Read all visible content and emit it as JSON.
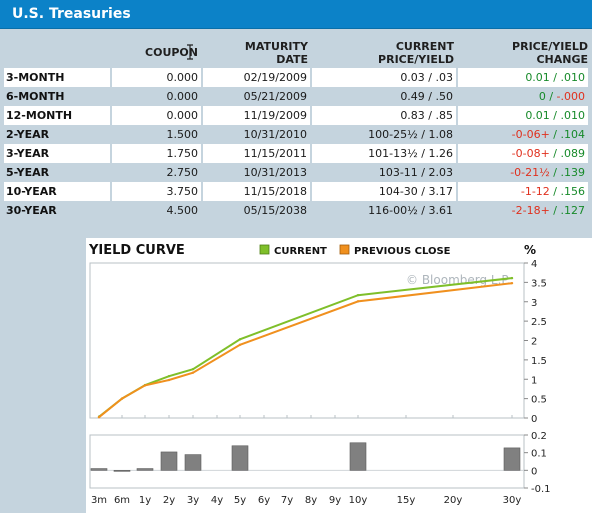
{
  "header": {
    "title": "U.S. Treasuries"
  },
  "columns": {
    "coupon": "COUPON",
    "maturity_line1": "MATURITY",
    "maturity_line2": "DATE",
    "price_line1": "CURRENT",
    "price_line2": "PRICE/YIELD",
    "change_line1": "PRICE/YIELD",
    "change_line2": "CHANGE"
  },
  "rows": [
    {
      "label": "3-MONTH",
      "coupon": "0.000",
      "maturity": "02/19/2009",
      "price_yield": "0.03 / .03",
      "change": "0.01 / .010",
      "change_sign": "pos"
    },
    {
      "label": "6-MONTH",
      "coupon": "0.000",
      "maturity": "05/21/2009",
      "price_yield": "0.49 / .50",
      "change_price": "0 / ",
      "change_yield": "-.000",
      "change_sign": "mixed"
    },
    {
      "label": "12-MONTH",
      "coupon": "0.000",
      "maturity": "11/19/2009",
      "price_yield": "0.83 / .85",
      "change": "0.01 / .010",
      "change_sign": "pos"
    },
    {
      "label": "2-YEAR",
      "coupon": "1.500",
      "maturity": "10/31/2010",
      "price_yield": "100-25½ / 1.08",
      "change_price": "-0-06+",
      "change_yield": " / .104",
      "change_sign": "mixed2"
    },
    {
      "label": "3-YEAR",
      "coupon": "1.750",
      "maturity": "11/15/2011",
      "price_yield": "101-13½ / 1.26",
      "change_price": "-0-08+",
      "change_yield": " / .089",
      "change_sign": "mixed2"
    },
    {
      "label": "5-YEAR",
      "coupon": "2.750",
      "maturity": "10/31/2013",
      "price_yield": "103-11 / 2.03",
      "change_price": "-0-21½",
      "change_yield": " / .139",
      "change_sign": "mixed2"
    },
    {
      "label": "10-YEAR",
      "coupon": "3.750",
      "maturity": "11/15/2018",
      "price_yield": "104-30 / 3.17",
      "change_price": "-1-12",
      "change_yield": " / .156",
      "change_sign": "mixed2"
    },
    {
      "label": "30-YEAR",
      "coupon": "4.500",
      "maturity": "05/15/2038",
      "price_yield": "116-00½ / 3.61",
      "change_price": "-2-18+",
      "change_yield": " / .127",
      "change_sign": "mixed2"
    }
  ],
  "chart_data": [
    {
      "type": "line",
      "title": "YIELD CURVE",
      "ylabel": "%",
      "watermark": "© Bloomberg L.P.",
      "legend": [
        "CURRENT",
        "PREVIOUS CLOSE"
      ],
      "legend_position": "top",
      "x": [
        "3m",
        "6m",
        "1y",
        "2y",
        "3y",
        "4y",
        "5y",
        "6y",
        "7y",
        "8y",
        "9y",
        "10y",
        "15y",
        "20y",
        "30y"
      ],
      "x_months": [
        3,
        6,
        12,
        24,
        36,
        48,
        60,
        72,
        84,
        96,
        108,
        120,
        180,
        240,
        360
      ],
      "yticks": [
        "0",
        "0.5",
        "1",
        "1.5",
        "2",
        "2.5",
        "3",
        "3.5",
        "4"
      ],
      "ylim": [
        0,
        4
      ],
      "series": [
        {
          "name": "CURRENT",
          "color": "#7fbf2a",
          "points": [
            [
              3,
              0.03
            ],
            [
              6,
              0.5
            ],
            [
              12,
              0.85
            ],
            [
              24,
              1.08
            ],
            [
              36,
              1.26
            ],
            [
              60,
              2.03
            ],
            [
              120,
              3.17
            ],
            [
              360,
              3.61
            ]
          ]
        },
        {
          "name": "PREVIOUS CLOSE",
          "color": "#f0901e",
          "points": [
            [
              3,
              0.02
            ],
            [
              6,
              0.5
            ],
            [
              12,
              0.84
            ],
            [
              24,
              0.98
            ],
            [
              36,
              1.17
            ],
            [
              60,
              1.89
            ],
            [
              120,
              3.01
            ],
            [
              360,
              3.48
            ]
          ]
        }
      ]
    },
    {
      "type": "bar",
      "yticks": [
        "0.2",
        "0.1",
        "0",
        "-0.1"
      ],
      "ylim": [
        -0.1,
        0.2
      ],
      "bar_color": "#808080",
      "bars": [
        [
          3,
          0.01
        ],
        [
          6,
          0.0
        ],
        [
          12,
          0.01
        ],
        [
          24,
          0.104
        ],
        [
          36,
          0.089
        ],
        [
          60,
          0.139
        ],
        [
          120,
          0.156
        ],
        [
          360,
          0.127
        ]
      ]
    }
  ]
}
